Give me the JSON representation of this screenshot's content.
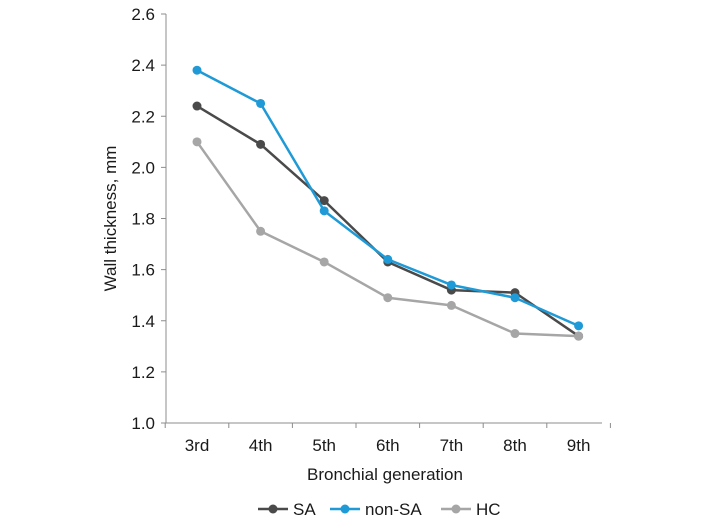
{
  "chart_data": {
    "type": "line",
    "title": "",
    "xlabel": "Bronchial generation",
    "ylabel": "Wall thickness, mm",
    "categories": [
      "3rd",
      "4th",
      "5th",
      "6th",
      "7th",
      "8th",
      "9th"
    ],
    "ylim": [
      1.0,
      2.6
    ],
    "yticks": [
      "1.0",
      "1.2",
      "1.4",
      "1.6",
      "1.8",
      "2.0",
      "2.2",
      "2.4",
      "2.6"
    ],
    "grid": false,
    "legend_position": "bottom",
    "series": [
      {
        "name": "SA",
        "color": "#4a4a4a",
        "values": [
          2.24,
          2.09,
          1.87,
          1.63,
          1.52,
          1.51,
          1.34
        ]
      },
      {
        "name": "non-SA",
        "color": "#1f9ad6",
        "values": [
          2.38,
          2.25,
          1.83,
          1.64,
          1.54,
          1.49,
          1.38
        ]
      },
      {
        "name": "HC",
        "color": "#a6a6a6",
        "values": [
          2.1,
          1.75,
          1.63,
          1.49,
          1.46,
          1.35,
          1.34
        ]
      }
    ]
  }
}
